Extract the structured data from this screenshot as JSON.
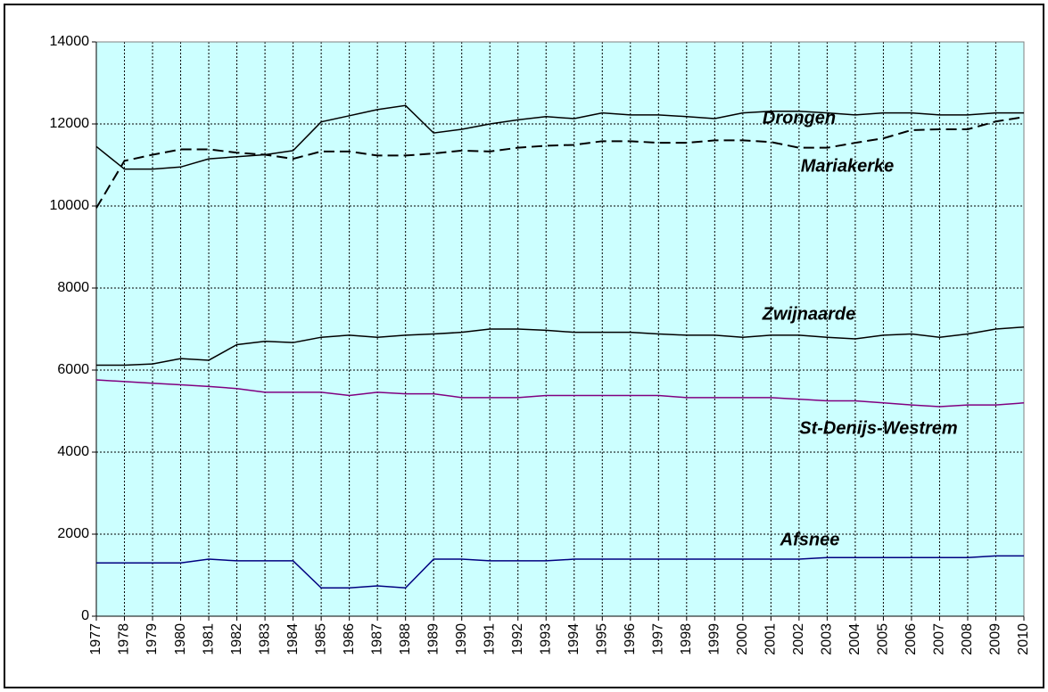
{
  "chart_data": {
    "type": "line",
    "categories": [
      "1977",
      "1978",
      "1979",
      "1980",
      "1981",
      "1982",
      "1983",
      "1984",
      "1985",
      "1986",
      "1987",
      "1988",
      "1989",
      "1990",
      "1991",
      "1992",
      "1993",
      "1994",
      "1995",
      "1996",
      "1997",
      "1998",
      "1999",
      "2000",
      "2001",
      "2002",
      "2003",
      "2004",
      "2005",
      "2006",
      "2007",
      "2008",
      "2009",
      "2010"
    ],
    "series": [
      {
        "name": "Drongen",
        "color": "#000000",
        "style": "solid",
        "values": [
          11450,
          10900,
          10900,
          10950,
          11150,
          11200,
          11250,
          11350,
          12050,
          12200,
          12350,
          12450,
          11780,
          11870,
          12000,
          12100,
          12180,
          12130,
          12270,
          12220,
          12220,
          12180,
          12130,
          12270,
          12310,
          12310,
          12270,
          12220,
          12270,
          12270,
          12220,
          12220,
          12270,
          12270
        ]
      },
      {
        "name": "Mariakerke",
        "color": "#000000",
        "style": "dashed",
        "values": [
          9950,
          11100,
          11250,
          11380,
          11380,
          11300,
          11250,
          11150,
          11330,
          11330,
          11230,
          11230,
          11280,
          11350,
          11330,
          11420,
          11470,
          11490,
          11580,
          11580,
          11540,
          11540,
          11600,
          11600,
          11560,
          11420,
          11420,
          11540,
          11650,
          11850,
          11870,
          11870,
          12060,
          12170
        ]
      },
      {
        "name": "Zwijnaarde",
        "color": "#000000",
        "style": "solid",
        "values": [
          6120,
          6120,
          6150,
          6280,
          6240,
          6620,
          6700,
          6670,
          6800,
          6850,
          6800,
          6850,
          6880,
          6920,
          7000,
          7000,
          6970,
          6920,
          6920,
          6920,
          6880,
          6850,
          6850,
          6800,
          6850,
          6850,
          6800,
          6760,
          6850,
          6880,
          6800,
          6880,
          7000,
          7050
        ]
      },
      {
        "name": "St-Denijs-Westrem",
        "color": "#800080",
        "style": "solid",
        "values": [
          5760,
          5720,
          5680,
          5640,
          5600,
          5550,
          5460,
          5460,
          5460,
          5380,
          5460,
          5420,
          5420,
          5330,
          5330,
          5330,
          5380,
          5380,
          5380,
          5380,
          5380,
          5330,
          5330,
          5330,
          5330,
          5290,
          5250,
          5250,
          5200,
          5150,
          5110,
          5150,
          5150,
          5200
        ]
      },
      {
        "name": "Afsnee",
        "color": "#000080",
        "style": "solid",
        "values": [
          1300,
          1300,
          1300,
          1300,
          1390,
          1350,
          1350,
          1350,
          690,
          690,
          740,
          690,
          1390,
          1390,
          1350,
          1350,
          1350,
          1390,
          1390,
          1390,
          1390,
          1390,
          1390,
          1390,
          1390,
          1390,
          1430,
          1430,
          1430,
          1430,
          1430,
          1430,
          1470,
          1470
        ]
      }
    ],
    "ylim": [
      0,
      14000
    ],
    "yticks": [
      0,
      2000,
      4000,
      6000,
      8000,
      10000,
      12000,
      14000
    ],
    "grid": true
  }
}
